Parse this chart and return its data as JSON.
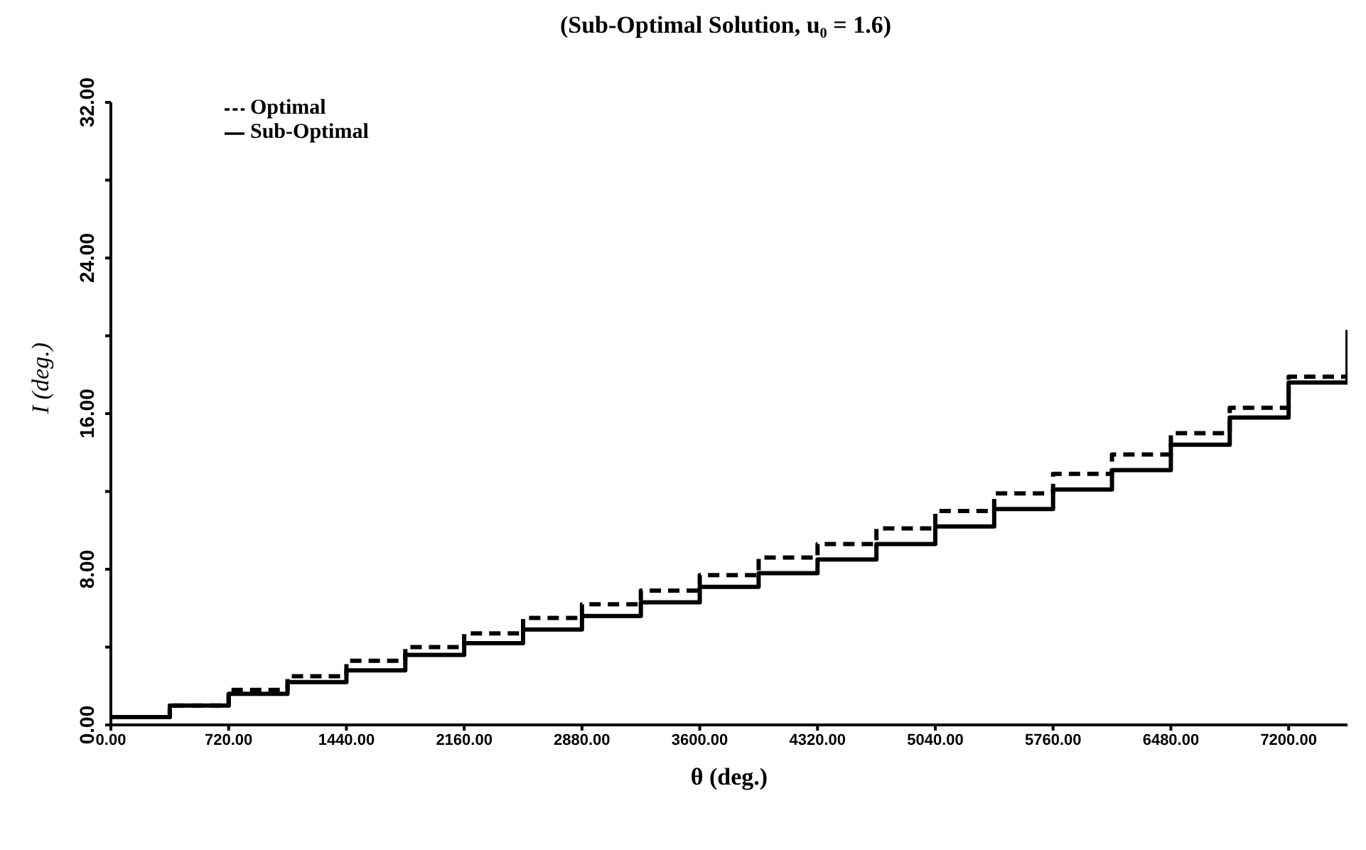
{
  "chart_data": {
    "type": "step",
    "title": "(Sub-Optimal Solution, u₀ = 1.6)",
    "xlabel": "θ (deg.)",
    "ylabel": "I (deg.)",
    "x": [
      0,
      360,
      720,
      1080,
      1440,
      1800,
      2160,
      2520,
      2880,
      3240,
      3600,
      3960,
      4320,
      4680,
      5040,
      5400,
      5760,
      6120,
      6480,
      6840,
      7200,
      7560
    ],
    "series": [
      {
        "name": "Optimal",
        "color": "#000000",
        "line_style": "dashed",
        "values": [
          0.4,
          1.0,
          1.8,
          2.5,
          3.3,
          4.0,
          4.7,
          5.5,
          6.2,
          6.9,
          7.7,
          8.6,
          9.3,
          10.1,
          11.0,
          11.9,
          12.9,
          13.9,
          15.0,
          16.3,
          17.9,
          20.3
        ]
      },
      {
        "name": "Sub-Optimal",
        "color": "#000000",
        "line_style": "solid",
        "values": [
          0.4,
          1.0,
          1.6,
          2.2,
          2.8,
          3.6,
          4.2,
          4.9,
          5.6,
          6.3,
          7.1,
          7.8,
          8.5,
          9.3,
          10.2,
          11.1,
          12.1,
          13.1,
          14.4,
          15.8,
          17.6,
          20.3
        ]
      }
    ],
    "xlim": [
      0,
      7560
    ],
    "xticks": [
      {
        "value": 0,
        "label": "0.00"
      },
      {
        "value": 720,
        "label": "720.00"
      },
      {
        "value": 1440,
        "label": "1440.00"
      },
      {
        "value": 2160,
        "label": "2160.00"
      },
      {
        "value": 2880,
        "label": "2880.00"
      },
      {
        "value": 3600,
        "label": "3600.00"
      },
      {
        "value": 4320,
        "label": "4320.00"
      },
      {
        "value": 5040,
        "label": "5040.00"
      },
      {
        "value": 5760,
        "label": "5760.00"
      },
      {
        "value": 6480,
        "label": "6480.00"
      },
      {
        "value": 7200,
        "label": "7200.00"
      }
    ],
    "ylim": [
      0,
      32
    ],
    "yticks": [
      {
        "value": 0,
        "label": "0.00"
      },
      {
        "value": 4,
        "label": null
      },
      {
        "value": 8,
        "label": "8.00"
      },
      {
        "value": 12,
        "label": null
      },
      {
        "value": 16,
        "label": "16.00"
      },
      {
        "value": 20,
        "label": null
      },
      {
        "value": 24,
        "label": "24.00"
      },
      {
        "value": 28,
        "label": null
      },
      {
        "value": 32,
        "label": "32.00"
      }
    ],
    "grid": false,
    "legend": "top left",
    "marker": "none"
  }
}
